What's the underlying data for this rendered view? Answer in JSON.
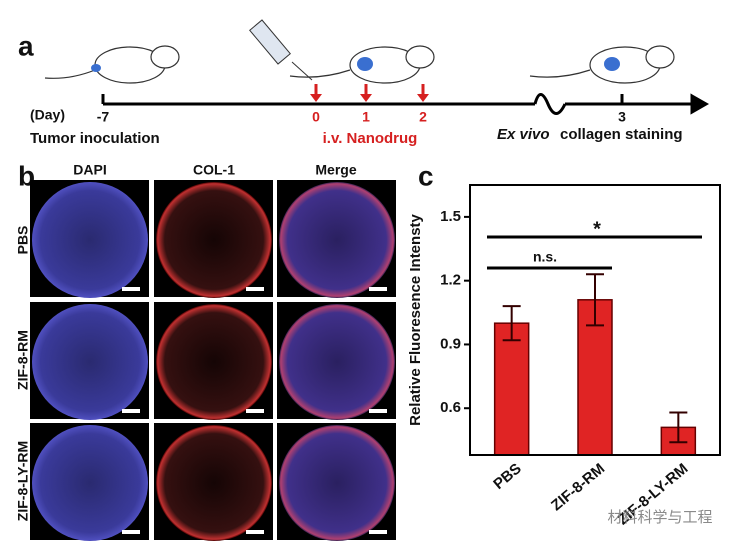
{
  "panel_a": {
    "label": "a",
    "day_label": "(Day)",
    "days": [
      "-7",
      "0",
      "1",
      "2",
      "3"
    ],
    "start_label": "Tumor inoculation",
    "drug_label": "i.v. Nanodrug",
    "end_label_italic": "Ex vivo",
    "end_label": "collagen staining"
  },
  "panel_b": {
    "label": "b",
    "columns": [
      "DAPI",
      "COL-1",
      "Merge"
    ],
    "rows": [
      "PBS",
      "ZIF-8-RM",
      "ZIF-8-LY-RM"
    ]
  },
  "chart_data": {
    "type": "bar",
    "label": "c",
    "y_label": "Relative Fluoresence Intensty",
    "categories": [
      "PBS",
      "ZIF-8-RM",
      "ZIF-8-LY-RM"
    ],
    "values": [
      1.0,
      1.11,
      0.51
    ],
    "errors": [
      0.08,
      0.12,
      0.07
    ],
    "color": "#e02424",
    "ylim": [
      0.38,
      1.65
    ],
    "yticks": [
      0.6,
      0.9,
      1.2,
      1.5
    ],
    "annotations": [
      "n.s.",
      "*"
    ]
  },
  "watermark": "材料科学与工程"
}
